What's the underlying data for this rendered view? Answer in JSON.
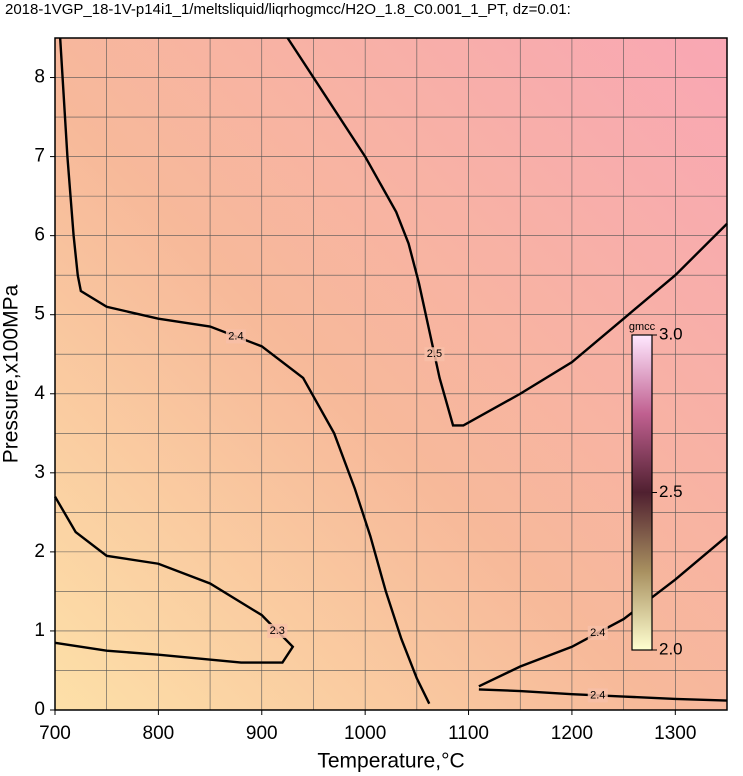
{
  "chart_data": {
    "type": "contour",
    "title": "2018-1VGP_18-1V-p14i1_1/meltsliquid/liqrhogmcc/H2O_1.8_C0.001_1_PT, dz=0.01:",
    "x_label": "Temperature,°C",
    "y_label": "Pressure,x100MPa",
    "xlim": [
      700,
      1350
    ],
    "ylim": [
      0,
      8.5
    ],
    "xticks": [
      700,
      800,
      900,
      1000,
      1100,
      1200,
      1300
    ],
    "yticks": [
      0,
      1,
      2,
      3,
      4,
      5,
      6,
      7,
      8
    ],
    "x_grid": [
      700,
      750,
      800,
      850,
      900,
      950,
      1000,
      1050,
      1100,
      1150,
      1200,
      1250,
      1300,
      1350
    ],
    "y_grid": [
      0.5,
      1,
      1.5,
      2,
      2.5,
      3,
      3.5,
      4,
      4.5,
      5,
      5.5,
      6,
      6.5,
      7,
      7.5,
      8
    ],
    "grid": true,
    "contours": [
      {
        "level": 2.5,
        "x": [
          925,
          960,
          1000,
          1030,
          1042,
          1052,
          1062,
          1072,
          1085,
          1095,
          1150,
          1200,
          1250,
          1300,
          1350
        ],
        "y": [
          8.5,
          7.8,
          7.0,
          6.3,
          5.9,
          5.4,
          4.8,
          4.2,
          3.6,
          3.6,
          4.0,
          4.4,
          4.95,
          5.5,
          6.15
        ]
      },
      {
        "level": 2.4,
        "x": [
          705,
          712,
          718,
          722,
          725,
          750,
          800,
          850,
          900,
          940,
          970,
          990,
          1005,
          1020,
          1035,
          1050,
          1062
        ],
        "y": [
          8.5,
          7.0,
          6.0,
          5.5,
          5.3,
          5.1,
          4.95,
          4.85,
          4.6,
          4.2,
          3.5,
          2.8,
          2.2,
          1.5,
          0.9,
          0.4,
          0.08
        ]
      },
      {
        "level": 2.4,
        "x": [
          1110,
          1150,
          1200,
          1250,
          1300,
          1350
        ],
        "y": [
          0.3,
          0.55,
          0.8,
          1.15,
          1.65,
          2.2
        ]
      },
      {
        "level": 2.4,
        "x": [
          1110,
          1150,
          1200,
          1250,
          1300,
          1350
        ],
        "y": [
          0.26,
          0.24,
          0.2,
          0.17,
          0.14,
          0.12
        ]
      },
      {
        "level": 2.3,
        "x": [
          700,
          720,
          750,
          800,
          850,
          900,
          930,
          920,
          880,
          800,
          750,
          700
        ],
        "y": [
          2.7,
          2.25,
          1.95,
          1.85,
          1.6,
          1.2,
          0.8,
          0.6,
          0.6,
          0.7,
          0.75,
          0.85
        ]
      }
    ],
    "colorbar": {
      "title": "gmcc",
      "lim": [
        2,
        3
      ],
      "ticks": [
        {
          "value": 2,
          "label": "2.0"
        },
        2.5,
        {
          "value": 3,
          "label": "3.0"
        }
      ]
    }
  }
}
